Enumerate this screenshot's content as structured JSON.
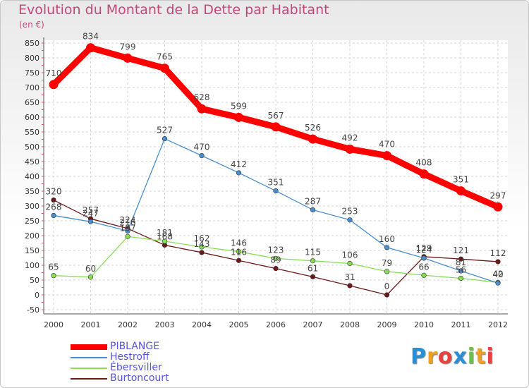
{
  "chart_data": {
    "type": "line",
    "title": "Evolution du Montant de la Dette par Habitant",
    "subtitle": "(en €)",
    "x": [
      "2000",
      "2001",
      "2002",
      "2003",
      "2004",
      "2005",
      "2006",
      "2007",
      "2008",
      "2009",
      "2010",
      "2011",
      "2012"
    ],
    "yticks": [
      -50,
      0,
      50,
      100,
      150,
      200,
      250,
      300,
      350,
      400,
      450,
      500,
      550,
      600,
      650,
      700,
      750,
      800,
      850
    ],
    "ylim": [
      -50,
      850
    ],
    "grid": true,
    "legend_position": "bottom-left",
    "series": [
      {
        "name": "PIBLANGE",
        "color": "#ff0000",
        "values": [
          710,
          834,
          799,
          765,
          628,
          599,
          567,
          526,
          492,
          470,
          408,
          351,
          297
        ]
      },
      {
        "name": "Hestroff",
        "color": "#4a8ed0",
        "values": [
          268,
          247,
          216,
          527,
          470,
          412,
          351,
          287,
          253,
          160,
          124,
          81,
          40
        ]
      },
      {
        "name": "Ébersviller",
        "color": "#88dd55",
        "values": [
          65,
          60,
          197,
          181,
          162,
          146,
          123,
          115,
          106,
          79,
          66,
          56,
          42
        ]
      },
      {
        "name": "Burtoncourt",
        "color": "#6b1a1a",
        "values": [
          320,
          257,
          224,
          168,
          143,
          116,
          89,
          61,
          31,
          0,
          129,
          121,
          112
        ]
      }
    ]
  },
  "logo": {
    "text": "Proxiti"
  }
}
